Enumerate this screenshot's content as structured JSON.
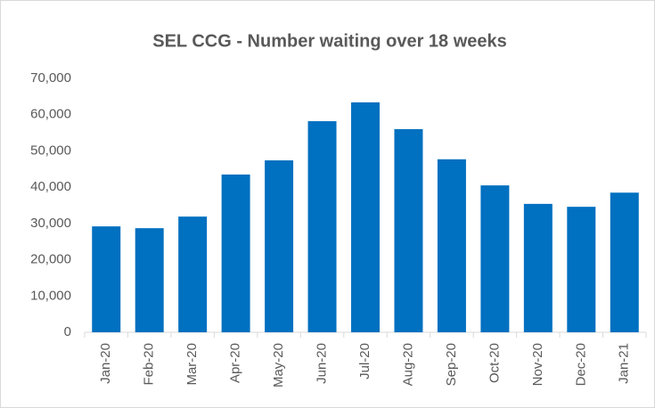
{
  "chart_data": {
    "type": "bar",
    "title": "SEL CCG - Number waiting over 18 weeks",
    "categories": [
      "Jan-20",
      "Feb-20",
      "Mar-20",
      "Apr-20",
      "May-20",
      "Jun-20",
      "Jul-20",
      "Aug-20",
      "Sep-20",
      "Oct-20",
      "Nov-20",
      "Dec-20",
      "Jan-21"
    ],
    "values": [
      29200,
      28700,
      31900,
      43500,
      47400,
      58200,
      63400,
      56000,
      47700,
      40500,
      35400,
      34600,
      38500
    ],
    "color": "#0070c0",
    "ylim": [
      0,
      70000
    ],
    "yticks": [
      0,
      {
        "value": 10000,
        "label": "10,000"
      },
      {
        "value": 20000,
        "label": "20,000"
      },
      {
        "value": 30000,
        "label": "30,000"
      },
      {
        "value": 40000,
        "label": "40,000"
      },
      {
        "value": 50000,
        "label": "50,000"
      },
      {
        "value": 60000,
        "label": "60,000"
      },
      {
        "value": 70000,
        "label": "70,000"
      }
    ],
    "grid": false
  }
}
